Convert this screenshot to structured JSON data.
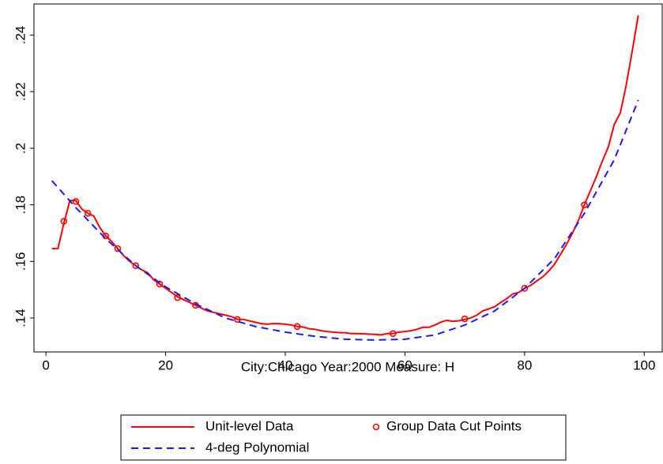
{
  "chart_data": {
    "type": "line",
    "x_label": "City:Chicago Year:2000 Measure: H",
    "xlim": [
      -2,
      103
    ],
    "xticks": [
      0,
      20,
      40,
      60,
      80,
      100
    ],
    "ylim": [
      0.128,
      0.251
    ],
    "yticks": [
      {
        "value": 0.14,
        "label": ".14"
      },
      {
        "value": 0.16,
        "label": ".16"
      },
      {
        "value": 0.18,
        "label": ".18"
      },
      {
        "value": 0.2,
        "label": ".2"
      },
      {
        "value": 0.22,
        "label": ".22"
      },
      {
        "value": 0.24,
        "label": ".24"
      }
    ],
    "grid": false,
    "series": [
      {
        "name": "Unit-level Data",
        "color": "#ff0000",
        "mark": "line",
        "dash": false,
        "x": [
          1,
          2,
          3,
          4,
          5,
          6,
          7,
          8,
          9,
          10,
          11,
          12,
          13,
          14,
          15,
          16,
          17,
          18,
          19,
          20,
          21,
          22,
          23,
          24,
          25,
          26,
          27,
          28,
          29,
          30,
          31,
          32,
          33,
          34,
          35,
          36,
          37,
          38,
          39,
          40,
          41,
          42,
          43,
          44,
          45,
          46,
          47,
          48,
          49,
          50,
          51,
          52,
          53,
          54,
          55,
          56,
          57,
          58,
          59,
          60,
          61,
          62,
          63,
          64,
          65,
          66,
          67,
          68,
          69,
          70,
          71,
          72,
          73,
          74,
          75,
          76,
          77,
          78,
          79,
          80,
          81,
          82,
          83,
          84,
          85,
          86,
          87,
          88,
          89,
          90,
          91,
          92,
          93,
          94,
          95,
          96,
          97,
          98,
          99
        ],
        "values": [
          0.1645,
          0.1645,
          0.1735,
          0.1815,
          0.1815,
          0.1785,
          0.177,
          0.176,
          0.172,
          0.169,
          0.167,
          0.1645,
          0.162,
          0.16,
          0.1585,
          0.157,
          0.156,
          0.1535,
          0.152,
          0.1505,
          0.149,
          0.1475,
          0.1465,
          0.1455,
          0.1445,
          0.1435,
          0.1425,
          0.142,
          0.1415,
          0.141,
          0.1405,
          0.1395,
          0.1395,
          0.139,
          0.1385,
          0.138,
          0.1378,
          0.138,
          0.138,
          0.1378,
          0.1375,
          0.137,
          0.1368,
          0.1362,
          0.136,
          0.1355,
          0.1352,
          0.135,
          0.1348,
          0.1348,
          0.1345,
          0.1345,
          0.1344,
          0.1343,
          0.1342,
          0.134,
          0.1345,
          0.1345,
          0.135,
          0.1352,
          0.1355,
          0.136,
          0.1367,
          0.1367,
          0.1375,
          0.1385,
          0.1392,
          0.1388,
          0.139,
          0.1395,
          0.14,
          0.141,
          0.1425,
          0.1432,
          0.144,
          0.1455,
          0.1468,
          0.1485,
          0.149,
          0.1505,
          0.1515,
          0.153,
          0.1545,
          0.1565,
          0.159,
          0.1625,
          0.166,
          0.17,
          0.1745,
          0.18,
          0.185,
          0.19,
          0.1955,
          0.2005,
          0.2085,
          0.2125,
          0.2225,
          0.2345,
          0.247
        ]
      },
      {
        "name": "Group Data Cut Points",
        "color": "#ff0000",
        "mark": "circle",
        "dash": false,
        "x": [
          3,
          5,
          7,
          10,
          12,
          15,
          19,
          22,
          25,
          32,
          42,
          58,
          70,
          80,
          90
        ],
        "values": [
          0.1742,
          0.1812,
          0.177,
          0.169,
          0.1645,
          0.1585,
          0.152,
          0.1472,
          0.1445,
          0.1395,
          0.137,
          0.1345,
          0.1397,
          0.1505,
          0.18
        ]
      },
      {
        "name": "4-deg Polynomial",
        "color": "#1a1aff",
        "mark": "line",
        "dash": true,
        "x": [
          1,
          5,
          10,
          15,
          20,
          25,
          30,
          35,
          40,
          45,
          50,
          55,
          60,
          65,
          70,
          75,
          80,
          85,
          90,
          95,
          99
        ],
        "values": [
          0.1885,
          0.179,
          0.168,
          0.1585,
          0.151,
          0.145,
          0.14,
          0.137,
          0.135,
          0.1335,
          0.1325,
          0.1322,
          0.1325,
          0.134,
          0.1375,
          0.1425,
          0.1505,
          0.161,
          0.177,
          0.196,
          0.217
        ]
      }
    ]
  }
}
